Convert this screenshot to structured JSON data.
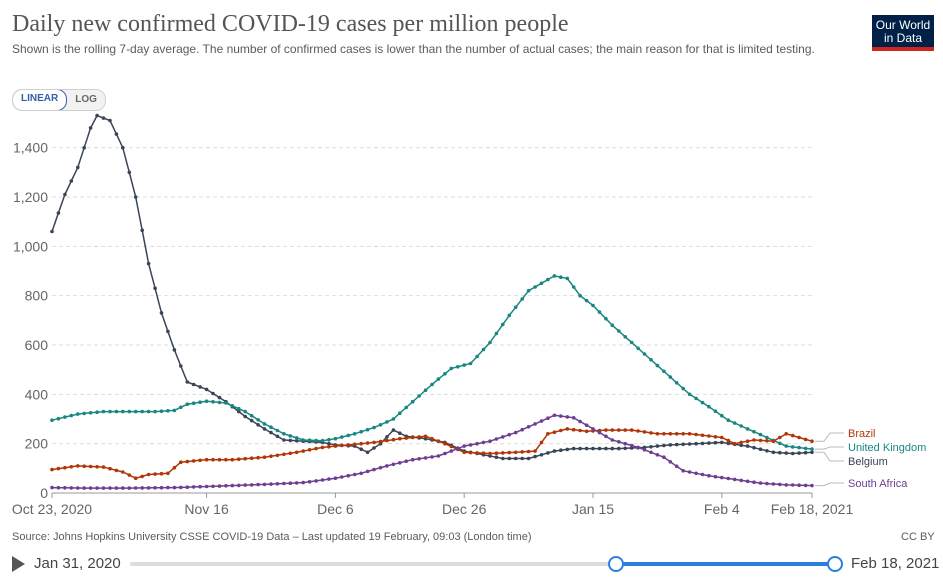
{
  "header": {
    "title": "Daily new confirmed COVID-19 cases per million people",
    "subtitle": "Shown is the rolling 7-day average. The number of confirmed cases is lower than the number of actual cases; the main reason for that is limited testing.",
    "logo_line1": "Our World",
    "logo_line2": "in Data"
  },
  "scale_toggle": {
    "linear_label": "LINEAR",
    "log_label": "LOG",
    "selected": "LINEAR"
  },
  "footer": {
    "source": "Source: Johns Hopkins University CSSE COVID-19 Data – Last updated 19 February, 09:03 (London time)",
    "license": "CC BY"
  },
  "timeline": {
    "start_label": "Jan 31, 2020",
    "end_label": "Feb 18, 2021",
    "selected_start_fraction": 0.69,
    "selected_end_fraction": 1.0
  },
  "chart_data": {
    "type": "line",
    "x_start": "2020-10-23",
    "x_end": "2021-02-18",
    "xlim": [
      "2020-10-23",
      "2021-02-18"
    ],
    "ylim": [
      0,
      1500
    ],
    "yticks": [
      0,
      200,
      400,
      600,
      800,
      1000,
      1200,
      1400
    ],
    "ytick_labels": [
      "0",
      "200",
      "400",
      "600",
      "800",
      "1,000",
      "1,200",
      "1,400"
    ],
    "xticks": [
      "2020-10-23",
      "2020-11-16",
      "2020-12-06",
      "2020-12-26",
      "2021-01-15",
      "2021-02-04",
      "2021-02-18"
    ],
    "xtick_labels": [
      "Oct 23, 2020",
      "Nov 16",
      "Dec 6",
      "Dec 26",
      "Jan 15",
      "Feb 4",
      "Feb 18, 2021"
    ],
    "grid": "horizontal-dashed",
    "legend": "right-end-labels",
    "series": [
      {
        "name": "Belgium",
        "color": "#3a4457",
        "points": [
          [
            "2020-10-23",
            1060
          ],
          [
            "2020-10-25",
            1210
          ],
          [
            "2020-10-27",
            1320
          ],
          [
            "2020-10-29",
            1480
          ],
          [
            "2020-10-30",
            1530
          ],
          [
            "2020-11-01",
            1510
          ],
          [
            "2020-11-03",
            1400
          ],
          [
            "2020-11-05",
            1200
          ],
          [
            "2020-11-07",
            930
          ],
          [
            "2020-11-09",
            730
          ],
          [
            "2020-11-11",
            580
          ],
          [
            "2020-11-13",
            450
          ],
          [
            "2020-11-16",
            420
          ],
          [
            "2020-11-19",
            370
          ],
          [
            "2020-11-22",
            310
          ],
          [
            "2020-11-25",
            260
          ],
          [
            "2020-11-28",
            215
          ],
          [
            "2020-12-01",
            210
          ],
          [
            "2020-12-04",
            205
          ],
          [
            "2020-12-06",
            195
          ],
          [
            "2020-12-09",
            190
          ],
          [
            "2020-12-11",
            165
          ],
          [
            "2020-12-13",
            200
          ],
          [
            "2020-12-15",
            255
          ],
          [
            "2020-12-17",
            230
          ],
          [
            "2020-12-20",
            220
          ],
          [
            "2020-12-23",
            205
          ],
          [
            "2020-12-26",
            170
          ],
          [
            "2020-12-29",
            155
          ],
          [
            "2021-01-01",
            140
          ],
          [
            "2021-01-05",
            140
          ],
          [
            "2021-01-09",
            170
          ],
          [
            "2021-01-12",
            180
          ],
          [
            "2021-01-15",
            180
          ],
          [
            "2021-01-19",
            180
          ],
          [
            "2021-01-23",
            185
          ],
          [
            "2021-01-27",
            195
          ],
          [
            "2021-01-31",
            200
          ],
          [
            "2021-02-04",
            205
          ],
          [
            "2021-02-08",
            190
          ],
          [
            "2021-02-12",
            165
          ],
          [
            "2021-02-15",
            160
          ],
          [
            "2021-02-18",
            165
          ]
        ]
      },
      {
        "name": "United Kingdom",
        "color": "#18877f",
        "points": [
          [
            "2020-10-23",
            295
          ],
          [
            "2020-10-27",
            320
          ],
          [
            "2020-10-31",
            330
          ],
          [
            "2020-11-04",
            330
          ],
          [
            "2020-11-08",
            330
          ],
          [
            "2020-11-11",
            335
          ],
          [
            "2020-11-13",
            360
          ],
          [
            "2020-11-16",
            372
          ],
          [
            "2020-11-19",
            365
          ],
          [
            "2020-11-22",
            330
          ],
          [
            "2020-11-25",
            280
          ],
          [
            "2020-11-28",
            240
          ],
          [
            "2020-12-01",
            215
          ],
          [
            "2020-12-04",
            212
          ],
          [
            "2020-12-06",
            220
          ],
          [
            "2020-12-09",
            240
          ],
          [
            "2020-12-12",
            265
          ],
          [
            "2020-12-15",
            300
          ],
          [
            "2020-12-18",
            370
          ],
          [
            "2020-12-21",
            440
          ],
          [
            "2020-12-24",
            505
          ],
          [
            "2020-12-27",
            525
          ],
          [
            "2020-12-30",
            610
          ],
          [
            "2021-01-02",
            720
          ],
          [
            "2021-01-05",
            820
          ],
          [
            "2021-01-07",
            850
          ],
          [
            "2021-01-09",
            880
          ],
          [
            "2021-01-11",
            870
          ],
          [
            "2021-01-13",
            800
          ],
          [
            "2021-01-15",
            760
          ],
          [
            "2021-01-18",
            680
          ],
          [
            "2021-01-21",
            610
          ],
          [
            "2021-01-24",
            540
          ],
          [
            "2021-01-27",
            470
          ],
          [
            "2021-01-30",
            400
          ],
          [
            "2021-02-02",
            350
          ],
          [
            "2021-02-05",
            295
          ],
          [
            "2021-02-08",
            260
          ],
          [
            "2021-02-11",
            225
          ],
          [
            "2021-02-14",
            190
          ],
          [
            "2021-02-18",
            178
          ]
        ]
      },
      {
        "name": "Brazil",
        "color": "#b13507",
        "points": [
          [
            "2020-10-23",
            95
          ],
          [
            "2020-10-27",
            110
          ],
          [
            "2020-10-31",
            105
          ],
          [
            "2020-11-03",
            85
          ],
          [
            "2020-11-05",
            60
          ],
          [
            "2020-11-07",
            75
          ],
          [
            "2020-11-10",
            80
          ],
          [
            "2020-11-12",
            125
          ],
          [
            "2020-11-16",
            135
          ],
          [
            "2020-11-20",
            135
          ],
          [
            "2020-11-25",
            145
          ],
          [
            "2020-11-30",
            165
          ],
          [
            "2020-12-04",
            185
          ],
          [
            "2020-12-08",
            195
          ],
          [
            "2020-12-12",
            205
          ],
          [
            "2020-12-16",
            220
          ],
          [
            "2020-12-20",
            230
          ],
          [
            "2020-12-23",
            200
          ],
          [
            "2020-12-26",
            165
          ],
          [
            "2020-12-30",
            160
          ],
          [
            "2021-01-03",
            165
          ],
          [
            "2021-01-06",
            170
          ],
          [
            "2021-01-08",
            240
          ],
          [
            "2021-01-11",
            260
          ],
          [
            "2021-01-14",
            250
          ],
          [
            "2021-01-17",
            255
          ],
          [
            "2021-01-21",
            255
          ],
          [
            "2021-01-25",
            240
          ],
          [
            "2021-01-30",
            240
          ],
          [
            "2021-02-04",
            225
          ],
          [
            "2021-02-06",
            200
          ],
          [
            "2021-02-09",
            215
          ],
          [
            "2021-02-12",
            210
          ],
          [
            "2021-02-14",
            240
          ],
          [
            "2021-02-16",
            225
          ],
          [
            "2021-02-18",
            210
          ]
        ]
      },
      {
        "name": "South Africa",
        "color": "#6d3e91",
        "points": [
          [
            "2020-10-23",
            22
          ],
          [
            "2020-10-28",
            20
          ],
          [
            "2020-11-04",
            20
          ],
          [
            "2020-11-11",
            22
          ],
          [
            "2020-11-18",
            28
          ],
          [
            "2020-11-25",
            35
          ],
          [
            "2020-12-01",
            42
          ],
          [
            "2020-12-06",
            60
          ],
          [
            "2020-12-10",
            80
          ],
          [
            "2020-12-14",
            110
          ],
          [
            "2020-12-18",
            135
          ],
          [
            "2020-12-22",
            150
          ],
          [
            "2020-12-26",
            190
          ],
          [
            "2020-12-30",
            210
          ],
          [
            "2021-01-03",
            245
          ],
          [
            "2021-01-06",
            280
          ],
          [
            "2021-01-09",
            315
          ],
          [
            "2021-01-12",
            305
          ],
          [
            "2021-01-15",
            260
          ],
          [
            "2021-01-18",
            215
          ],
          [
            "2021-01-22",
            185
          ],
          [
            "2021-01-26",
            145
          ],
          [
            "2021-01-29",
            90
          ],
          [
            "2021-02-02",
            70
          ],
          [
            "2021-02-06",
            55
          ],
          [
            "2021-02-10",
            40
          ],
          [
            "2021-02-14",
            33
          ],
          [
            "2021-02-18",
            30
          ]
        ]
      }
    ]
  }
}
